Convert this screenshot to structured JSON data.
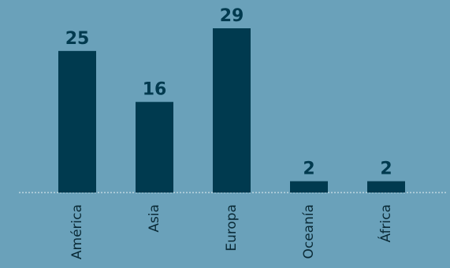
{
  "chart_data": {
    "type": "bar",
    "categories": [
      "América",
      "Asia",
      "Europa",
      "Oceanía",
      "África"
    ],
    "values": [
      25,
      16,
      29,
      2,
      2
    ],
    "title": "",
    "xlabel": "",
    "ylabel": "",
    "ylim": [
      0,
      29
    ],
    "grid": false,
    "legend": "none",
    "colors": {
      "background": "#6aa1ba",
      "bar": "#003a4f",
      "baseline": "#e6eef2"
    }
  }
}
